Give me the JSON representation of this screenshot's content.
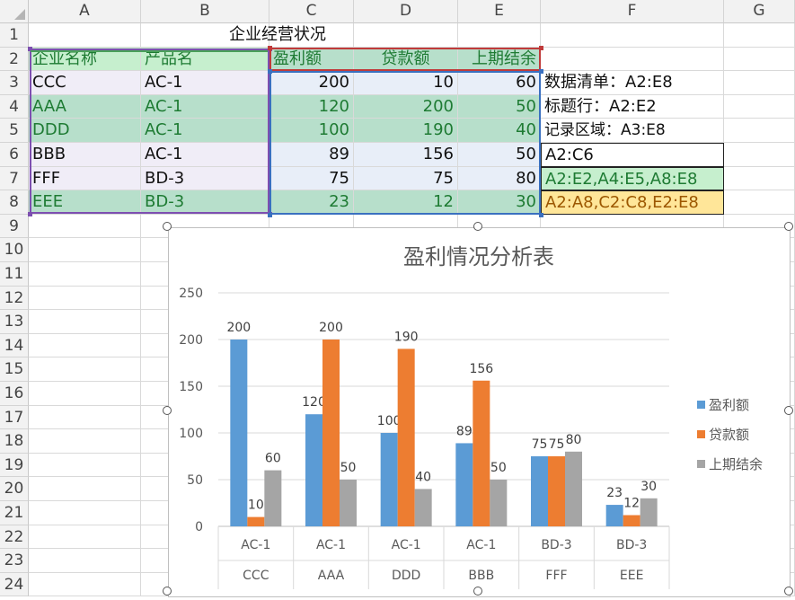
{
  "columns": [
    "A",
    "B",
    "C",
    "D",
    "E",
    "F",
    "G"
  ],
  "rows": [
    "1",
    "2",
    "3",
    "4",
    "5",
    "6",
    "7",
    "8",
    "9",
    "10",
    "11",
    "12",
    "13",
    "14",
    "15",
    "16",
    "17",
    "18",
    "19",
    "20",
    "21",
    "22",
    "23",
    "24"
  ],
  "sheet_title": "企业经营状况",
  "headers": {
    "a2": "企业名称",
    "b2": "产品名",
    "c2": "盈利额",
    "d2": "贷款额",
    "e2": "上期结余"
  },
  "table_rows": [
    {
      "company": "CCC",
      "product": "AC-1",
      "profit": "200",
      "loan": "10",
      "balance": "60"
    },
    {
      "company": "AAA",
      "product": "AC-1",
      "profit": "120",
      "loan": "200",
      "balance": "50"
    },
    {
      "company": "DDD",
      "product": "AC-1",
      "profit": "100",
      "loan": "190",
      "balance": "40"
    },
    {
      "company": "BBB",
      "product": "AC-1",
      "profit": "89",
      "loan": "156",
      "balance": "50"
    },
    {
      "company": "FFF",
      "product": "BD-3",
      "profit": "75",
      "loan": "75",
      "balance": "80"
    },
    {
      "company": "EEE",
      "product": "BD-3",
      "profit": "23",
      "loan": "12",
      "balance": "30"
    }
  ],
  "notes": {
    "f3": "数据清单：A2:E8",
    "f4": "标题行：A2:E2",
    "f5": "记录区域：A3:E8",
    "f6": "A2:C6",
    "f7": "A2:E2,A4:E5,A8:E8",
    "f8": "A2:A8,C2:C8,E2:E8"
  },
  "colors": {
    "header_green_bg": "#c6efce",
    "header_green_text": "#1e7b33",
    "row_purple_bg": "#f0edf7",
    "row_blue_bg": "#e8eef8",
    "row_teal_bg": "#b7dfcb",
    "note_green_bg": "#c6efce",
    "note_yellow_bg": "#ffe699",
    "note_yellow_text": "#9c5700",
    "series1": "#5b9bd5",
    "series2": "#ed7d31",
    "series3": "#a5a5a5"
  },
  "chart_data": {
    "type": "bar",
    "title": "盈利情况分析表",
    "categories": [
      {
        "product": "AC-1",
        "company": "CCC"
      },
      {
        "product": "AC-1",
        "company": "AAA"
      },
      {
        "product": "AC-1",
        "company": "DDD"
      },
      {
        "product": "AC-1",
        "company": "BBB"
      },
      {
        "product": "BD-3",
        "company": "FFF"
      },
      {
        "product": "BD-3",
        "company": "EEE"
      }
    ],
    "series": [
      {
        "name": "盈利额",
        "values": [
          200,
          120,
          100,
          89,
          75,
          23
        ],
        "color": "#5b9bd5"
      },
      {
        "name": "贷款额",
        "values": [
          10,
          200,
          190,
          156,
          75,
          12
        ],
        "color": "#ed7d31"
      },
      {
        "name": "上期结余",
        "values": [
          60,
          50,
          40,
          50,
          80,
          30
        ],
        "color": "#a5a5a5"
      }
    ],
    "ylim": [
      0,
      250
    ],
    "yticks": [
      0,
      50,
      100,
      150,
      200,
      250
    ],
    "grid": true,
    "data_labels": true,
    "legend_position": "right"
  }
}
